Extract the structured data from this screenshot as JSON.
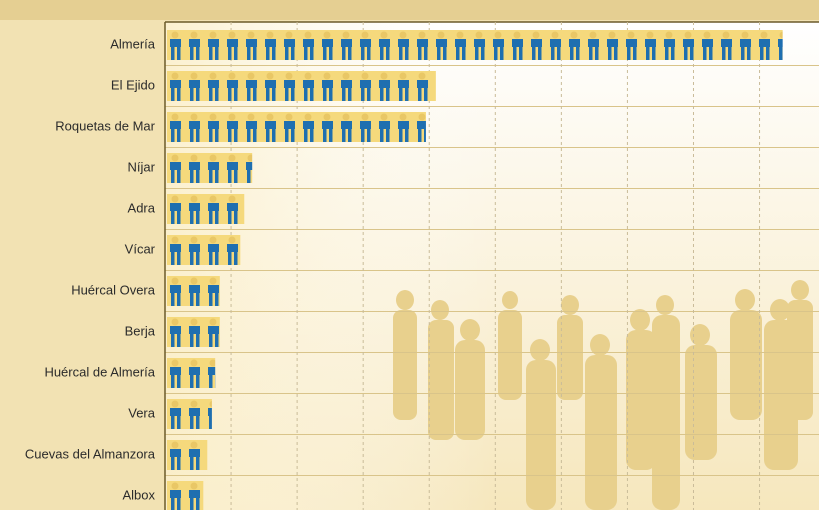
{
  "chart_data": {
    "type": "pictogram-bar",
    "categories": [
      "Almería",
      "El Ejido",
      "Roquetas de Mar",
      "Níjar",
      "Adra",
      "Vícar",
      "Huércal Overa",
      "Berja",
      "Huércal de Almería",
      "Vera",
      "Cuevas del Almanzora",
      "Albox"
    ],
    "values": [
      9.35,
      4.1,
      3.95,
      1.32,
      1.2,
      1.14,
      0.83,
      0.83,
      0.76,
      0.71,
      0.64,
      0.58
    ],
    "color": "#1f6fb0",
    "xlim": [
      0,
      9.9
    ],
    "xticks": [
      0,
      1,
      2,
      3,
      4,
      5,
      6,
      7,
      8,
      9
    ],
    "grid": true
  }
}
